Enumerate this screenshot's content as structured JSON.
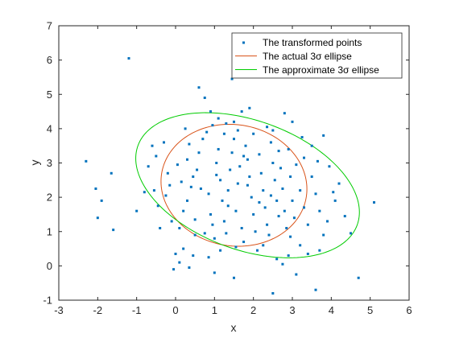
{
  "chart_data": {
    "type": "scatter",
    "xlabel": "x",
    "ylabel": "y",
    "xlim": [
      -3,
      6
    ],
    "ylim": [
      -1,
      7
    ],
    "xticks": [
      "-3",
      "-2",
      "-1",
      "0",
      "1",
      "2",
      "3",
      "4",
      "5",
      "6"
    ],
    "yticks": [
      "-1",
      "0",
      "1",
      "2",
      "3",
      "4",
      "5",
      "6",
      "7"
    ],
    "grid": false,
    "legend_position": "top-right",
    "legend": [
      {
        "label": "The transformed points",
        "color": "#0072BD",
        "style": "marker"
      },
      {
        "label": "The actual 3σ ellipse",
        "color": "#D95319",
        "style": "line"
      },
      {
        "label": "The approximate 3σ ellipse",
        "color": "#00CC00",
        "style": "line"
      }
    ],
    "series": [
      {
        "name": "The transformed points",
        "type": "scatter",
        "color": "#0072BD",
        "points": [
          [
            -1.2,
            6.05
          ],
          [
            -2.3,
            3.05
          ],
          [
            -2.05,
            2.25
          ],
          [
            -1.9,
            1.9
          ],
          [
            -2.0,
            1.4
          ],
          [
            -1.6,
            1.05
          ],
          [
            -1.65,
            2.7
          ],
          [
            -1.0,
            1.6
          ],
          [
            -0.8,
            2.15
          ],
          [
            -0.7,
            2.9
          ],
          [
            -0.6,
            3.5
          ],
          [
            -0.5,
            3.2
          ],
          [
            -0.3,
            3.6
          ],
          [
            -0.2,
            2.7
          ],
          [
            -0.1,
            1.3
          ],
          [
            0.0,
            0.35
          ],
          [
            -0.05,
            -0.1
          ],
          [
            0.1,
            0.1
          ],
          [
            0.2,
            0.5
          ],
          [
            0.35,
            -0.05
          ],
          [
            0.45,
            0.3
          ],
          [
            0.5,
            0.9
          ],
          [
            0.6,
            5.2
          ],
          [
            0.75,
            4.9
          ],
          [
            0.9,
            4.5
          ],
          [
            1.1,
            4.3
          ],
          [
            1.3,
            4.15
          ],
          [
            1.5,
            4.2
          ],
          [
            1.7,
            4.5
          ],
          [
            1.9,
            4.6
          ],
          [
            1.45,
            5.45
          ],
          [
            1.0,
            -0.2
          ],
          [
            1.5,
            -0.35
          ],
          [
            2.5,
            -0.8
          ],
          [
            2.6,
            0.2
          ],
          [
            2.9,
            0.3
          ],
          [
            3.2,
            0.6
          ],
          [
            3.6,
            -0.7
          ],
          [
            3.7,
            0.45
          ],
          [
            3.9,
            1.3
          ],
          [
            4.1,
            1.9
          ],
          [
            4.2,
            2.4
          ],
          [
            4.5,
            0.95
          ],
          [
            4.7,
            -0.35
          ],
          [
            5.1,
            1.85
          ],
          [
            3.8,
            3.8
          ],
          [
            3.0,
            4.2
          ],
          [
            2.8,
            4.45
          ],
          [
            2.5,
            3.95
          ],
          [
            2.0,
            3.85
          ],
          [
            3.5,
            3.5
          ],
          [
            3.3,
            3.15
          ],
          [
            0.3,
            3.1
          ],
          [
            -0.4,
            1.1
          ],
          [
            -0.25,
            2.05
          ],
          [
            0.1,
            1.1
          ],
          [
            0.2,
            1.6
          ],
          [
            0.3,
            1.9
          ],
          [
            0.4,
            2.3
          ],
          [
            0.45,
            2.6
          ],
          [
            0.55,
            2.8
          ],
          [
            0.6,
            3.3
          ],
          [
            0.7,
            3.7
          ],
          [
            0.8,
            3.9
          ],
          [
            0.85,
            2.1
          ],
          [
            0.9,
            1.5
          ],
          [
            0.95,
            1.2
          ],
          [
            1.0,
            0.8
          ],
          [
            1.05,
            3.0
          ],
          [
            1.1,
            3.4
          ],
          [
            1.15,
            2.5
          ],
          [
            1.2,
            1.9
          ],
          [
            1.25,
            1.3
          ],
          [
            1.3,
            0.95
          ],
          [
            1.35,
            2.2
          ],
          [
            1.4,
            2.8
          ],
          [
            1.45,
            3.3
          ],
          [
            1.5,
            3.7
          ],
          [
            1.55,
            1.6
          ],
          [
            1.6,
            2.4
          ],
          [
            1.65,
            2.9
          ],
          [
            1.7,
            1.1
          ],
          [
            1.75,
            0.7
          ],
          [
            1.8,
            3.5
          ],
          [
            1.85,
            3.1
          ],
          [
            1.9,
            2.6
          ],
          [
            1.95,
            2.0
          ],
          [
            2.0,
            1.5
          ],
          [
            2.05,
            1.0
          ],
          [
            2.1,
            0.45
          ],
          [
            2.15,
            3.25
          ],
          [
            2.2,
            2.7
          ],
          [
            2.25,
            2.2
          ],
          [
            2.3,
            1.7
          ],
          [
            2.35,
            1.2
          ],
          [
            2.4,
            0.9
          ],
          [
            2.45,
            3.6
          ],
          [
            2.5,
            3.0
          ],
          [
            2.55,
            2.5
          ],
          [
            2.6,
            1.9
          ],
          [
            2.65,
            1.45
          ],
          [
            2.7,
            2.85
          ],
          [
            2.75,
            2.25
          ],
          [
            2.8,
            1.6
          ],
          [
            2.85,
            1.1
          ],
          [
            2.9,
            3.4
          ],
          [
            2.95,
            2.6
          ],
          [
            3.0,
            1.9
          ],
          [
            3.05,
            1.4
          ],
          [
            3.1,
            2.95
          ],
          [
            3.2,
            2.2
          ],
          [
            3.3,
            1.7
          ],
          [
            3.4,
            1.2
          ],
          [
            3.5,
            2.6
          ],
          [
            3.6,
            2.1
          ],
          [
            3.7,
            1.6
          ],
          [
            3.8,
            0.9
          ],
          [
            0.95,
            4.1
          ],
          [
            1.25,
            3.85
          ],
          [
            1.6,
            3.95
          ],
          [
            2.35,
            4.05
          ],
          [
            0.15,
            2.45
          ],
          [
            0.05,
            2.95
          ],
          [
            -0.15,
            2.35
          ],
          [
            0.5,
            1.35
          ],
          [
            0.75,
            0.95
          ],
          [
            1.55,
            0.55
          ],
          [
            2.25,
            0.6
          ],
          [
            2.95,
            0.85
          ],
          [
            3.4,
            0.35
          ],
          [
            3.95,
            2.9
          ],
          [
            4.35,
            1.45
          ],
          [
            1.05,
            2.65
          ],
          [
            1.35,
            1.75
          ],
          [
            1.85,
            2.35
          ],
          [
            2.15,
            1.85
          ],
          [
            2.45,
            2.05
          ],
          [
            0.65,
            2.25
          ],
          [
            0.35,
            3.55
          ],
          [
            1.75,
            3.2
          ],
          [
            2.65,
            3.35
          ],
          [
            3.25,
            3.75
          ],
          [
            0.25,
            4.0
          ],
          [
            -0.55,
            2.2
          ],
          [
            -0.45,
            1.75
          ],
          [
            3.65,
            3.05
          ],
          [
            4.05,
            2.15
          ],
          [
            1.15,
            0.45
          ],
          [
            0.85,
            0.25
          ],
          [
            2.75,
            0.05
          ],
          [
            3.1,
            -0.25
          ]
        ]
      },
      {
        "name": "The actual 3σ ellipse",
        "type": "ellipse",
        "color": "#D95319",
        "center": [
          1.5,
          2.35
        ],
        "semi_axes": [
          1.9,
          1.75
        ],
        "rotation_deg": -25
      },
      {
        "name": "The approximate 3σ ellipse",
        "type": "ellipse",
        "color": "#00CC00",
        "center": [
          1.85,
          2.35
        ],
        "semi_axes": [
          3.05,
          1.85
        ],
        "rotation_deg": -25
      }
    ]
  }
}
